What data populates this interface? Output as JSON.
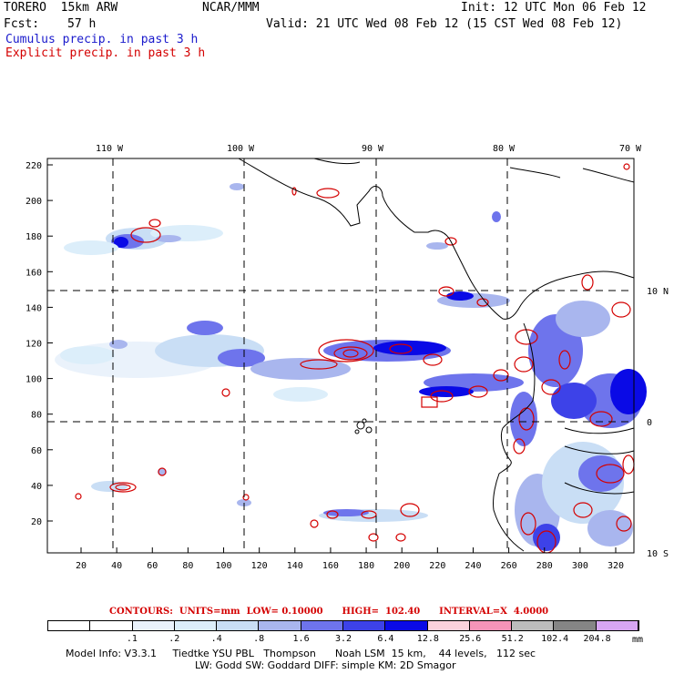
{
  "header": {
    "model": "TORERO  15km ARW",
    "org": "NCAR/MMM",
    "init": "Init: 12 UTC Mon 06 Feb 12",
    "fcst_label": "Fcst:",
    "fcst_value": "57 h",
    "valid": "Valid: 21 UTC Wed 08 Feb 12 (15 CST Wed 08 Feb 12)",
    "legend_cumulus": "Cumulus precip. in past 3 h",
    "legend_explicit": "Explicit precip. in past 3 h"
  },
  "map": {
    "top_ticks": [
      "110 W",
      "100 W",
      "90 W",
      "80 W",
      "70 W"
    ],
    "left_ticks": [
      "220",
      "200",
      "180",
      "160",
      "140",
      "120",
      "100",
      "80",
      "60",
      "40",
      "20"
    ],
    "bottom_ticks": [
      "20",
      "40",
      "60",
      "80",
      "100",
      "120",
      "140",
      "160",
      "180",
      "200",
      "220",
      "240",
      "260",
      "280",
      "300",
      "320"
    ],
    "right_ticks": [
      "10 N",
      "0",
      "10 S"
    ]
  },
  "contours": {
    "text": "CONTOURS:  UNITS=mm  LOW= 0.10000      HIGH=  102.40      INTERVAL=X  4.0000"
  },
  "colorbar": {
    "unit": "mm",
    "labels": [
      ".1",
      ".2",
      ".4",
      ".8",
      "1.6",
      "3.2",
      "6.4",
      "12.8",
      "25.6",
      "51.2",
      "102.4",
      "204.8"
    ],
    "colors": [
      "#ffffff",
      "#ffffff",
      "#eaf2fb",
      "#dceefa",
      "#c9def5",
      "#a9b6ee",
      "#6e74ec",
      "#3d42e8",
      "#0a0ae6",
      "#fbd2dc",
      "#f594b8",
      "#bcbcbc",
      "#858585",
      "#d7a6f3"
    ]
  },
  "footer": {
    "line1": "Model Info: V3.3.1     Tiedtke YSU PBL   Thompson      Noah LSM  15 km,    44 levels,   112 sec",
    "line2": "LW: Godd SW: Goddard DIFF: simple KM: 2D Smagor"
  }
}
